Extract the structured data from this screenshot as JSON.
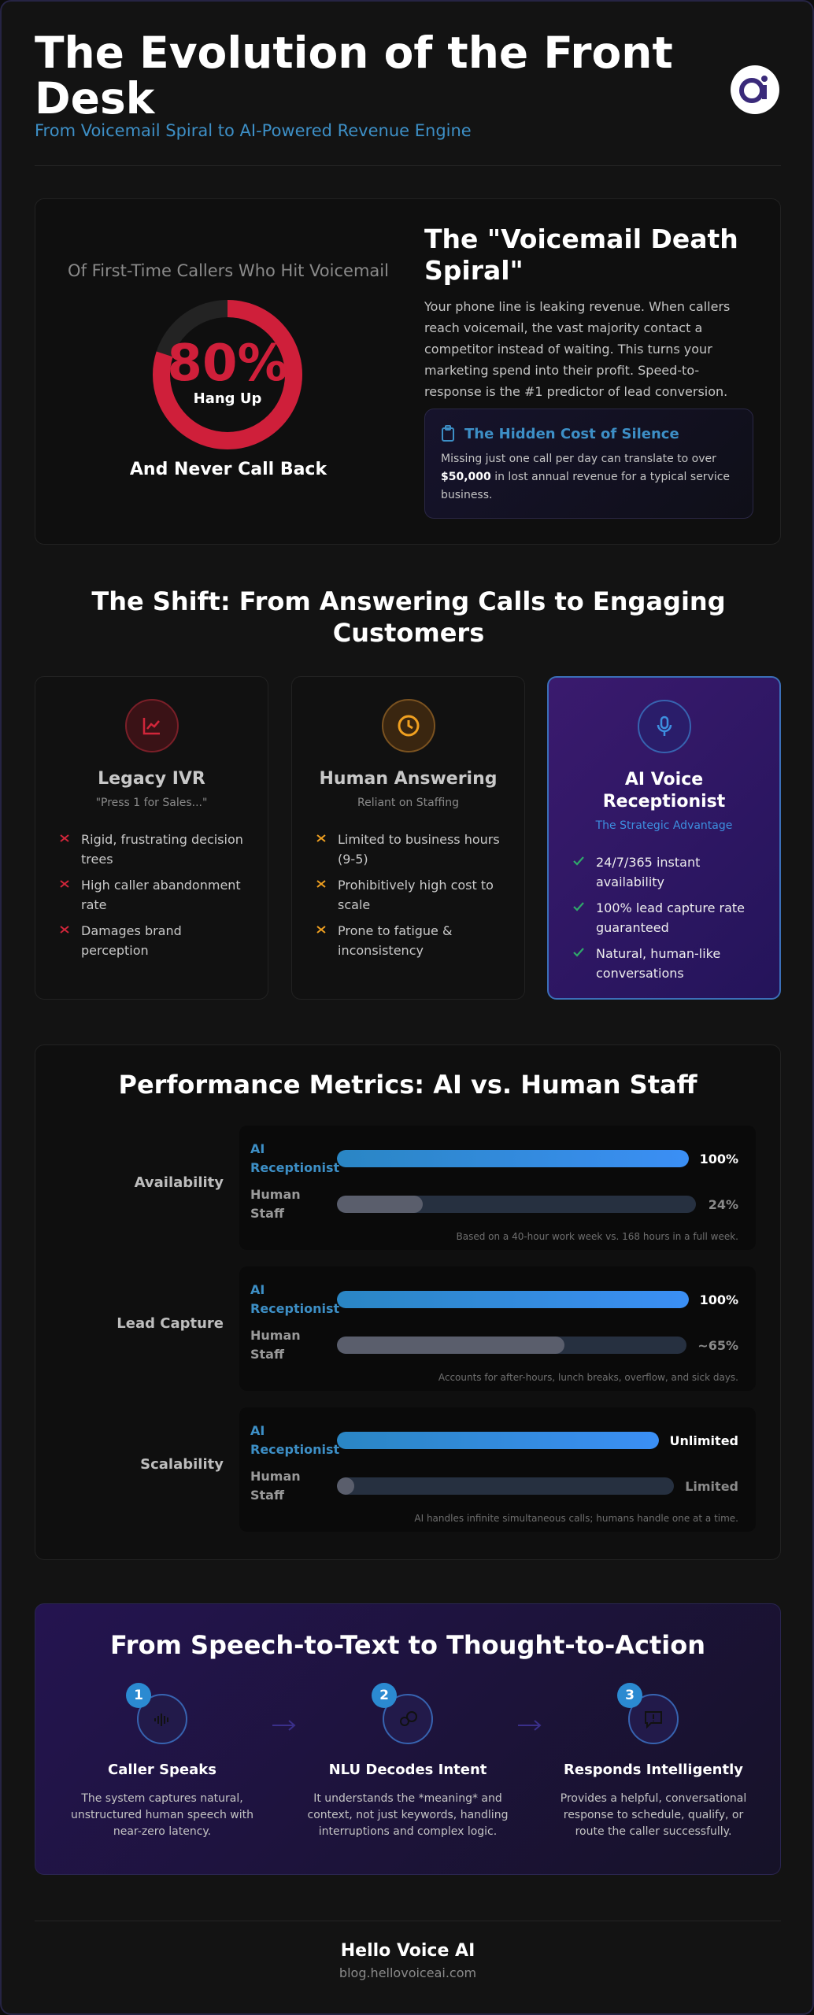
{
  "header": {
    "title": "The Evolution of the Front Desk",
    "subtitle": "From Voicemail Spiral to AI-Powered Revenue Engine"
  },
  "spiral": {
    "caption_top": "Of First-Time Callers Who Hit Voicemail",
    "stat": {
      "value": 80,
      "label": "80%"
    },
    "stat_caption": "Hang Up",
    "caption_bottom": "And Never Call Back",
    "heading": "The \"Voicemail Death Spiral\"",
    "body": "Your phone line is leaking revenue. When callers reach voicemail, the vast majority contact a competitor instead of waiting. This turns your marketing spend into their profit. Speed-to-response is the #1 predictor of lead conversion.",
    "callout": {
      "title": "The Hidden Cost of Silence",
      "text_before": "Missing just one call per day can translate to over ",
      "highlight": "$50,000",
      "text_after": " in lost annual revenue for a typical service business."
    }
  },
  "shift": {
    "title": "The Shift: From Answering Calls to Engaging Customers",
    "cards": [
      {
        "title": "Legacy IVR",
        "subtitle": "\"Press 1 for Sales...\"",
        "items": [
          "Rigid, frustrating decision trees",
          "High caller abandonment rate",
          "Damages brand perception"
        ]
      },
      {
        "title": "Human Answering",
        "subtitle": "Reliant on Staffing",
        "items": [
          "Limited to business hours (9-5)",
          "Prohibitively high cost to scale",
          "Prone to fatigue & inconsistency"
        ]
      },
      {
        "title": "AI Voice Receptionist",
        "subtitle": "The Strategic Advantage",
        "items": [
          "24/7/365 instant availability",
          "100% lead capture rate guaranteed",
          "Natural, human-like conversations"
        ]
      }
    ]
  },
  "metrics": {
    "title": "Performance Metrics: AI vs. Human Staff",
    "rows": [
      {
        "label": "Availability",
        "ai": {
          "name": "AI Receptionist",
          "value": 100,
          "value_label": "100%"
        },
        "human": {
          "name": "Human Staff",
          "value": 24,
          "value_label": "24%"
        },
        "note": "Based on a 40-hour work week vs. 168 hours in a full week."
      },
      {
        "label": "Lead Capture",
        "ai": {
          "name": "AI Receptionist",
          "value": 100,
          "value_label": "100%"
        },
        "human": {
          "name": "Human Staff",
          "value": 65,
          "value_label": "~65%"
        },
        "note": "Accounts for after-hours, lunch breaks, overflow, and sick days."
      },
      {
        "label": "Scalability",
        "ai": {
          "name": "AI Receptionist",
          "value_label": "Unlimited"
        },
        "human": {
          "name": "Human Staff",
          "value_label": "Limited"
        },
        "note": "AI handles infinite simultaneous calls; humans handle one at a time."
      }
    ]
  },
  "process": {
    "title": "From Speech-to-Text to Thought-to-Action",
    "steps": [
      {
        "number": 1,
        "title": "Caller Speaks",
        "text": "The system captures natural, unstructured human speech with near-zero latency."
      },
      {
        "number": 2,
        "title": "NLU Decodes Intent",
        "text": "It understands the *meaning* and context, not just keywords, handling interruptions and complex logic."
      },
      {
        "number": 3,
        "title": "Responds Intelligently",
        "text": "Provides a helpful, conversational response to schedule, qualify, or route the caller successfully."
      }
    ]
  },
  "footer": {
    "brand": "Hello Voice AI",
    "url": "blog.hellovoiceai.com"
  }
}
